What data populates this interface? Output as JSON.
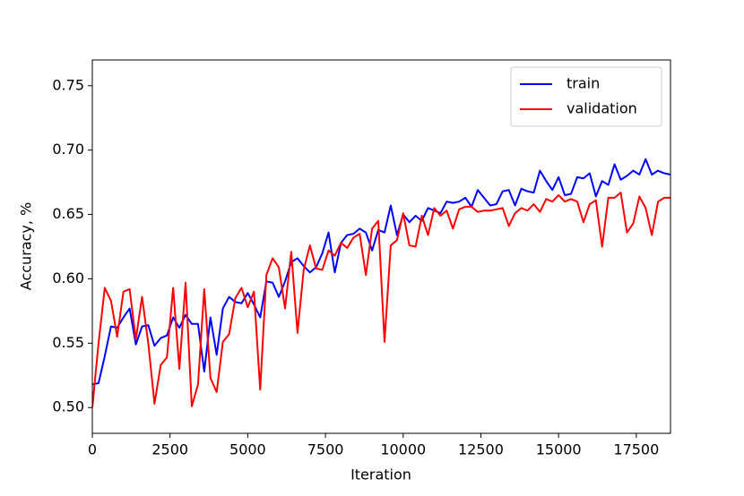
{
  "chart_data": {
    "type": "line",
    "x_label": "Iteration",
    "y_label": "Accuracy, %",
    "x": [
      0,
      200,
      400,
      600,
      800,
      1000,
      1200,
      1400,
      1600,
      1800,
      2000,
      2200,
      2400,
      2600,
      2800,
      3000,
      3200,
      3400,
      3600,
      3800,
      4000,
      4200,
      4400,
      4600,
      4800,
      5000,
      5200,
      5400,
      5600,
      5800,
      6000,
      6200,
      6400,
      6600,
      6800,
      7000,
      7200,
      7400,
      7600,
      7800,
      8000,
      8200,
      8400,
      8600,
      8800,
      9000,
      9200,
      9400,
      9600,
      9800,
      10000,
      10200,
      10400,
      10600,
      10800,
      11000,
      11200,
      11400,
      11600,
      11800,
      12000,
      12200,
      12400,
      12600,
      12800,
      13000,
      13200,
      13400,
      13600,
      13800,
      14000,
      14200,
      14400,
      14600,
      14800,
      15000,
      15200,
      15400,
      15600,
      15800,
      16000,
      16200,
      16400,
      16600,
      16800,
      17000,
      17200,
      17400,
      17600,
      17800,
      18000,
      18200,
      18400,
      18600
    ],
    "series": [
      {
        "name": "train",
        "color": "#0000ff",
        "values": [
          0.518,
          0.519,
          0.54,
          0.563,
          0.562,
          0.57,
          0.577,
          0.549,
          0.563,
          0.564,
          0.548,
          0.554,
          0.556,
          0.57,
          0.562,
          0.572,
          0.565,
          0.565,
          0.528,
          0.57,
          0.541,
          0.577,
          0.586,
          0.582,
          0.581,
          0.589,
          0.58,
          0.57,
          0.598,
          0.597,
          0.586,
          0.598,
          0.613,
          0.616,
          0.61,
          0.605,
          0.609,
          0.62,
          0.636,
          0.605,
          0.628,
          0.634,
          0.635,
          0.639,
          0.636,
          0.622,
          0.638,
          0.636,
          0.657,
          0.634,
          0.65,
          0.644,
          0.649,
          0.645,
          0.655,
          0.653,
          0.651,
          0.66,
          0.659,
          0.66,
          0.663,
          0.656,
          0.669,
          0.663,
          0.657,
          0.658,
          0.668,
          0.669,
          0.657,
          0.67,
          0.668,
          0.667,
          0.684,
          0.676,
          0.669,
          0.679,
          0.665,
          0.666,
          0.679,
          0.678,
          0.682,
          0.664,
          0.676,
          0.673,
          0.689,
          0.677,
          0.68,
          0.684,
          0.681,
          0.693,
          0.681,
          0.684,
          0.682,
          0.681
        ]
      },
      {
        "name": "validation",
        "color": "#ff0000",
        "values": [
          0.5,
          0.55,
          0.593,
          0.583,
          0.555,
          0.59,
          0.592,
          0.553,
          0.586,
          0.55,
          0.503,
          0.533,
          0.539,
          0.593,
          0.53,
          0.597,
          0.501,
          0.518,
          0.592,
          0.523,
          0.512,
          0.551,
          0.557,
          0.585,
          0.593,
          0.578,
          0.59,
          0.514,
          0.603,
          0.616,
          0.609,
          0.577,
          0.621,
          0.558,
          0.607,
          0.626,
          0.608,
          0.607,
          0.622,
          0.618,
          0.628,
          0.624,
          0.632,
          0.635,
          0.603,
          0.639,
          0.645,
          0.551,
          0.626,
          0.63,
          0.651,
          0.626,
          0.625,
          0.649,
          0.634,
          0.655,
          0.649,
          0.653,
          0.639,
          0.654,
          0.656,
          0.656,
          0.652,
          0.653,
          0.653,
          0.654,
          0.655,
          0.641,
          0.651,
          0.655,
          0.653,
          0.658,
          0.652,
          0.662,
          0.66,
          0.665,
          0.66,
          0.662,
          0.66,
          0.644,
          0.658,
          0.661,
          0.625,
          0.663,
          0.663,
          0.667,
          0.636,
          0.643,
          0.664,
          0.655,
          0.634,
          0.66,
          0.663,
          0.663
        ]
      }
    ],
    "xlim": [
      0,
      18600
    ],
    "ylim": [
      0.48,
      0.77
    ],
    "xticks": [
      0,
      2500,
      5000,
      7500,
      10000,
      12500,
      15000,
      17500
    ],
    "yticks": [
      {
        "value": 0.5,
        "label": "0.50"
      },
      0.55,
      {
        "value": 0.6,
        "label": "0.60"
      },
      0.65,
      {
        "value": 0.7,
        "label": "0.70"
      },
      0.75
    ],
    "legend": "upper right",
    "grid": false
  }
}
